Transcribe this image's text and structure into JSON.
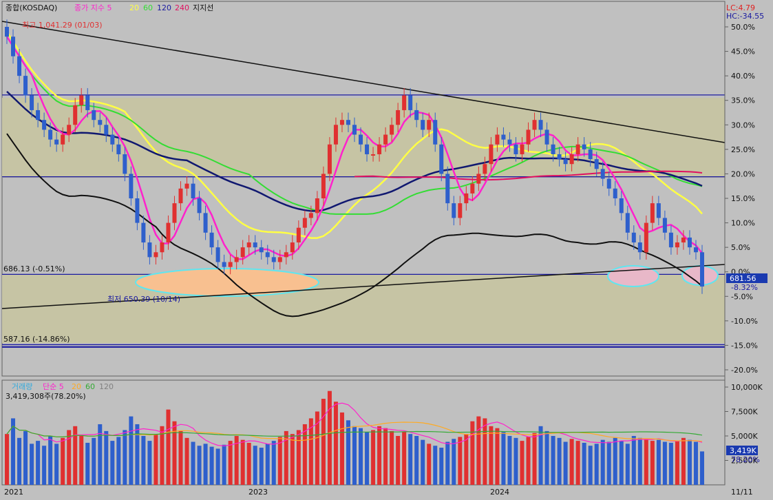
{
  "colors": {
    "bg": "#c0c0c0",
    "bandFill": "#c6c4a4",
    "up": "#e03030",
    "down": "#2e5fcc",
    "ma5": "#ff22cc",
    "ma20": "#ffff44",
    "ma60": "#33dd33",
    "ma120": "#101870",
    "ma240": "#e01060",
    "axisLine": "#1a1aa0",
    "support": "#101010",
    "ellipse": "#5ee6f0",
    "ellipseFill": "#f8c090"
  },
  "legend": {
    "title": "종합(KOSDAQ)",
    "price_label": "종가 지수 5",
    "ma20": "20",
    "ma60": "60",
    "ma120": "120",
    "ma240": "240",
    "support": "지지선"
  },
  "top_right": {
    "lc": "LC:4.79",
    "hc": "HC:-34.55"
  },
  "annotations": {
    "high": "최고 1,041.29 (01/03)",
    "low": "최저 650.39 (10/14)",
    "level1": "686.13 (-0.51%)",
    "level2": "587.16 (-14.86%)",
    "last_price": "681.56",
    "last_pct": "-8.32%"
  },
  "volume_panel": {
    "legend_label": "거래량",
    "ma_label": "단순 5",
    "ma20": "20",
    "ma60": "60",
    "ma120": "120",
    "current": "3,419,308주(78.20%)",
    "last_value": "3,419K",
    "last_pct": "78.20%",
    "y_ticks": [
      "10,000K",
      "7,500K",
      "5,000K",
      "2,500K"
    ]
  },
  "x_labels": [
    "2021",
    "2023",
    "2024",
    "11/11"
  ],
  "chart_data": {
    "type": "candlestick",
    "price_axis": {
      "unit": "%",
      "ticks": [
        "50.0%",
        "45.0%",
        "40.0%",
        "35.0%",
        "30.0%",
        "25.0%",
        "20.0%",
        "15.0%",
        "10.0%",
        "5.0%",
        "0.0%",
        "-5.0%",
        "-10.0%",
        "-15.0%",
        "-20.0%"
      ],
      "ylim": [
        -22,
        52
      ]
    },
    "price_series_pct": [
      48,
      44,
      40,
      36,
      33,
      31,
      29,
      27,
      26,
      28,
      30,
      34,
      36,
      33,
      31,
      30,
      28,
      26,
      24,
      20,
      15,
      10,
      6,
      3,
      4,
      6,
      10,
      14,
      17,
      18,
      15,
      12,
      8,
      5,
      2,
      1,
      2,
      3,
      5,
      6,
      5,
      4,
      3,
      2,
      3,
      4,
      6,
      9,
      11,
      12,
      15,
      20,
      26,
      30,
      31,
      30,
      28,
      26,
      24,
      24,
      26,
      28,
      30,
      33,
      36,
      33,
      31,
      29,
      31,
      26,
      20,
      14,
      11,
      14,
      16,
      18,
      20,
      22,
      26,
      28,
      27,
      26,
      24,
      26,
      29,
      31,
      29,
      26,
      24,
      23,
      22,
      24,
      26,
      25,
      23,
      21,
      19,
      17,
      15,
      12,
      8,
      6,
      4,
      10,
      14,
      11,
      8,
      5,
      6,
      7,
      5,
      4,
      -3
    ],
    "ma_series": [
      {
        "name": "5"
      },
      {
        "name": "20"
      },
      {
        "name": "60"
      },
      {
        "name": "120"
      },
      {
        "name": "240"
      }
    ],
    "horizontal_levels": [
      {
        "label": "686.13 (-0.51%)",
        "pct": -0.51
      },
      {
        "label": "587.16 (-14.86%)",
        "pct": -14.86
      },
      {
        "pct": 36.1
      },
      {
        "pct": 19.4
      },
      {
        "pct": -15.4
      }
    ],
    "volume": {
      "unit": "K",
      "ylim": [
        0,
        10000
      ],
      "values": [
        5200,
        6800,
        4800,
        5500,
        4200,
        4500,
        4000,
        5000,
        4200,
        4800,
        5600,
        6000,
        5000,
        4300,
        4800,
        6200,
        5500,
        4500,
        4900,
        5600,
        7000,
        6200,
        5000,
        4500,
        5200,
        6000,
        7700,
        6500,
        5500,
        4800,
        4400,
        4000,
        4200,
        3900,
        3700,
        4100,
        4500,
        5000,
        4600,
        4300,
        4000,
        3800,
        4200,
        4500,
        4900,
        5500,
        5200,
        5600,
        6200,
        6800,
        7500,
        8800,
        9600,
        8500,
        7400,
        6600,
        6000,
        5800,
        5400,
        5600,
        6000,
        5800,
        5500,
        5000,
        5400,
        5200,
        5000,
        4600,
        4200,
        4000,
        3800,
        4400,
        4700,
        4900,
        5200,
        6500,
        7000,
        6800,
        6000,
        5800,
        5400,
        5000,
        4800,
        4500,
        4900,
        5300,
        6000,
        5500,
        5000,
        4800,
        4400,
        4700,
        4500,
        4300,
        4000,
        4200,
        4600,
        4400,
        4800,
        4500,
        4200,
        5000,
        4800,
        4700,
        4500,
        4600,
        4400,
        4300,
        4500,
        4800,
        4600,
        4400,
        3419
      ]
    }
  }
}
